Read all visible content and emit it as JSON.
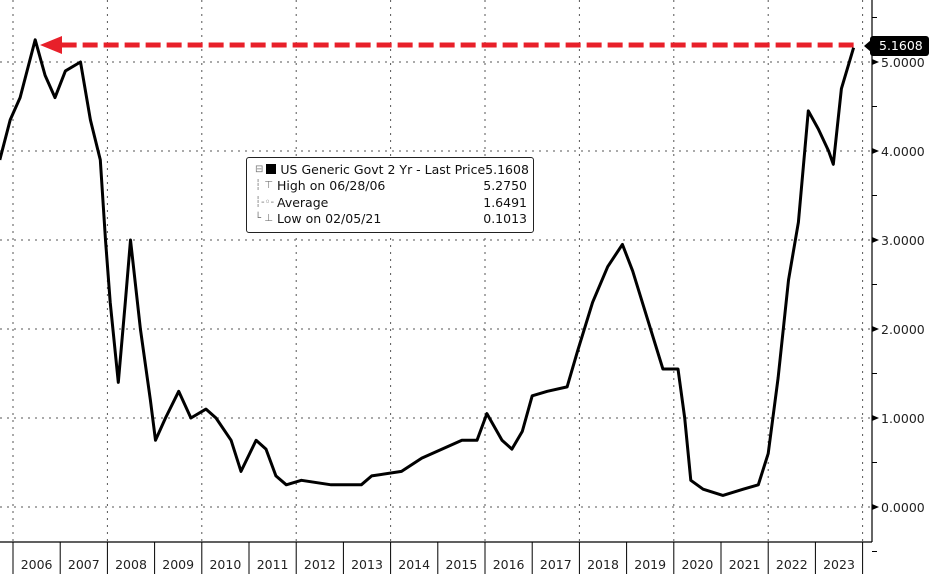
{
  "chart_data": {
    "type": "line",
    "title": "",
    "xlabel": "",
    "ylabel": "",
    "xlim": [
      2005.72,
      2024.2
    ],
    "ylim": [
      -0.35,
      5.7
    ],
    "grid": true,
    "y_ticks": [
      {
        "value": 0,
        "label": "0.0000"
      },
      {
        "value": 1,
        "label": "1.0000"
      },
      {
        "value": 2,
        "label": "2.0000"
      },
      {
        "value": 3,
        "label": "3.0000"
      },
      {
        "value": 4,
        "label": "4.0000"
      },
      {
        "value": 5,
        "label": "5.0000"
      }
    ],
    "x_ticks": [
      "2006",
      "2007",
      "2008",
      "2009",
      "2010",
      "2011",
      "2012",
      "2013",
      "2014",
      "2015",
      "2016",
      "2017",
      "2018",
      "2019",
      "2020",
      "2021",
      "2022",
      "2023"
    ],
    "series": [
      {
        "name": "US Generic Govt 2 Yr - Last Price",
        "color": "#000000",
        "x": [
          2005.72,
          2005.94,
          2006.15,
          2006.47,
          2006.68,
          2006.89,
          2007.11,
          2007.43,
          2007.64,
          2007.85,
          2007.96,
          2008.06,
          2008.23,
          2008.38,
          2008.49,
          2008.7,
          2008.91,
          2009.02,
          2009.23,
          2009.51,
          2009.77,
          2010.09,
          2010.3,
          2010.62,
          2010.83,
          2011.15,
          2011.36,
          2011.57,
          2011.79,
          2012.11,
          2012.74,
          2013.38,
          2013.6,
          2014.23,
          2014.66,
          2015.09,
          2015.51,
          2015.83,
          2016.04,
          2016.36,
          2016.57,
          2016.79,
          2017.0,
          2017.32,
          2017.74,
          2017.96,
          2018.28,
          2018.6,
          2018.91,
          2019.13,
          2019.45,
          2019.77,
          2020.09,
          2020.23,
          2020.36,
          2020.62,
          2021.04,
          2021.47,
          2021.79,
          2022.0,
          2022.21,
          2022.43,
          2022.64,
          2022.85,
          2023.06,
          2023.28,
          2023.38,
          2023.55,
          2023.81
        ],
        "values": [
          3.9,
          4.35,
          4.6,
          5.25,
          4.85,
          4.6,
          4.9,
          5.0,
          4.35,
          3.9,
          3.0,
          2.3,
          1.4,
          2.3,
          3.0,
          2.0,
          1.2,
          0.75,
          1.0,
          1.3,
          1.0,
          1.1,
          1.0,
          0.75,
          0.4,
          0.75,
          0.65,
          0.35,
          0.25,
          0.3,
          0.25,
          0.25,
          0.35,
          0.4,
          0.55,
          0.65,
          0.75,
          0.75,
          1.05,
          0.75,
          0.65,
          0.85,
          1.25,
          1.3,
          1.35,
          1.75,
          2.3,
          2.7,
          2.95,
          2.65,
          2.1,
          1.55,
          1.55,
          1.0,
          0.3,
          0.2,
          0.13,
          0.2,
          0.25,
          0.6,
          1.45,
          2.55,
          3.2,
          4.45,
          4.25,
          4.0,
          3.85,
          4.7,
          5.1608
        ]
      }
    ],
    "last_price_tag": "5.1608",
    "annotation": {
      "type": "dashed-arrow",
      "color": "#e8202a",
      "from_value": 5.1608,
      "points_to": "2006 high"
    },
    "legend": {
      "placement": "center",
      "rows": [
        {
          "label": "US Generic Govt 2 Yr - Last Price",
          "value": "5.1608"
        },
        {
          "label": "High on 06/28/06",
          "value": "5.2750"
        },
        {
          "label": "Average",
          "value": "1.6491"
        },
        {
          "label": "Low on 02/05/21",
          "value": "0.1013"
        }
      ]
    }
  }
}
